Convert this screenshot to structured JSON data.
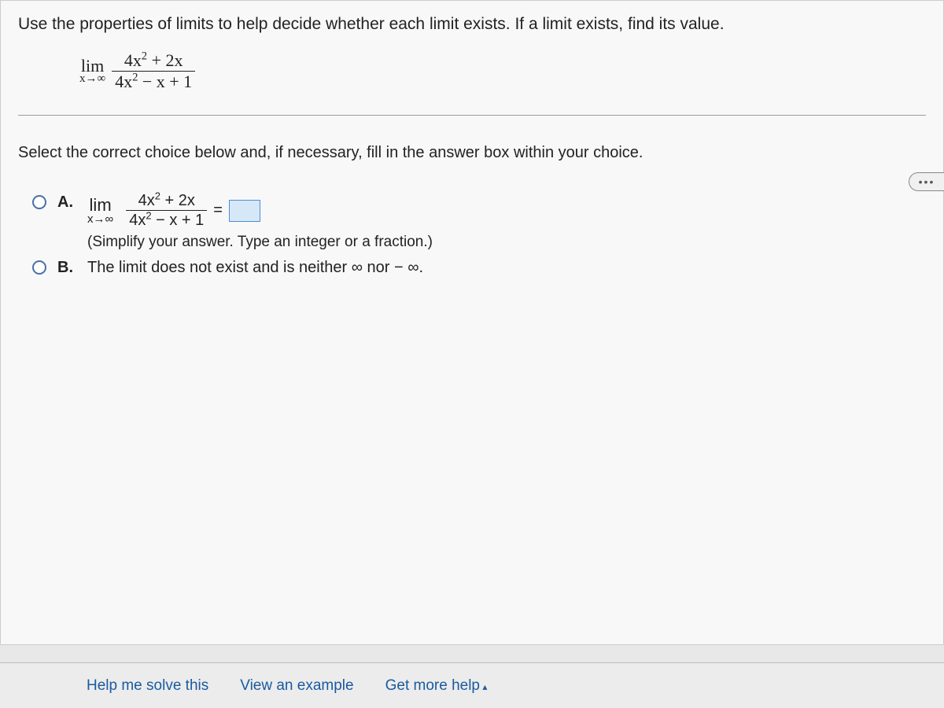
{
  "instruction": "Use the properties of limits to help decide whether each limit exists. If a limit exists, find its value.",
  "expr": {
    "lim_label": "lim",
    "lim_sub": "x→∞",
    "numerator_html": "4x<span class='sup'>2</span> + 2x",
    "denominator_html": "4x<span class='sup'>2</span> − x + 1"
  },
  "more_label": "•••",
  "select_prompt": "Select the correct choice below and, if necessary, fill in the answer box within your choice.",
  "choice_a": {
    "label": "A.",
    "equals": "=",
    "hint": "(Simplify your answer. Type an integer or a fraction.)"
  },
  "choice_b": {
    "label": "B.",
    "text": "The limit does not exist and is neither ∞ nor − ∞."
  },
  "footer": {
    "help": "Help me solve this",
    "example": "View an example",
    "more": "Get more help"
  },
  "colors": {
    "link": "#1a5aa0",
    "radio_border": "#4a6fa5",
    "answer_box_bg": "#d6e8f7",
    "answer_box_border": "#4a8fd8",
    "bg": "#f8f8f8"
  }
}
